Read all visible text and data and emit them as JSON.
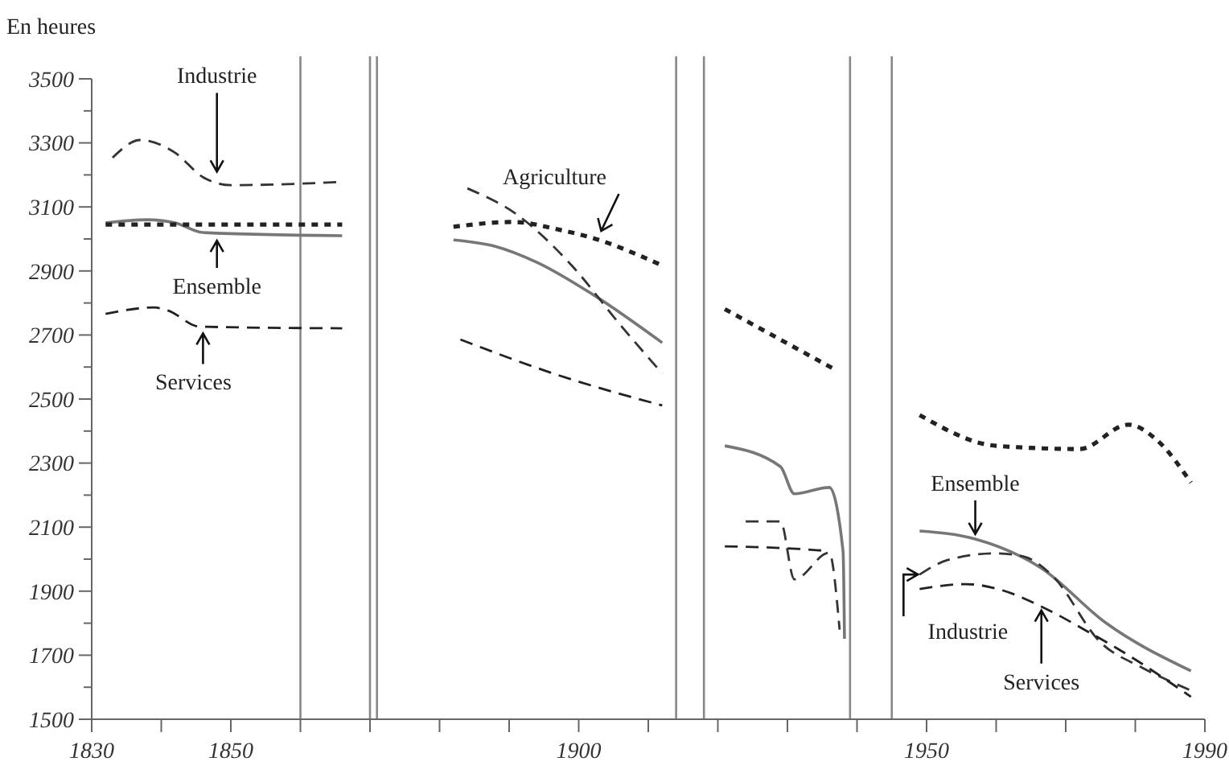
{
  "chart_data": {
    "type": "line",
    "ylabel": "En heures",
    "xlim": [
      1830,
      1990
    ],
    "xticks": [
      1830,
      {
        "value": 1840,
        "label": null
      },
      1850,
      {
        "value": 1860,
        "label": null
      },
      {
        "value": 1870,
        "label": null
      },
      {
        "value": 1880,
        "label": null
      },
      {
        "value": 1890,
        "label": null
      },
      1900,
      {
        "value": 1910,
        "label": null
      },
      {
        "value": 1920,
        "label": null
      },
      {
        "value": 1930,
        "label": null
      },
      {
        "value": 1940,
        "label": null
      },
      1950,
      {
        "value": 1960,
        "label": null
      },
      {
        "value": 1970,
        "label": null
      },
      {
        "value": 1980,
        "label": null
      },
      1990
    ],
    "ylim": [
      1500,
      3500
    ],
    "yticks": [
      1500,
      {
        "value": 1600,
        "label": null
      },
      1700,
      {
        "value": 1800,
        "label": null
      },
      1900,
      {
        "value": 2000,
        "label": null
      },
      2100,
      {
        "value": 2200,
        "label": null
      },
      2300,
      {
        "value": 2400,
        "label": null
      },
      2500,
      {
        "value": 2600,
        "label": null
      },
      2700,
      {
        "value": 2800,
        "label": null
      },
      2900,
      {
        "value": 3000,
        "label": null
      },
      3100,
      {
        "value": 3200,
        "label": null
      },
      3300,
      {
        "value": 3400,
        "label": null
      },
      3500
    ],
    "grid": false,
    "series": [
      {
        "color": "#777777",
        "line_style": "solid",
        "x": [
          1832,
          1838,
          1842,
          1846,
          1866,
          1874,
          1882,
          1888,
          1894,
          1902,
          1912,
          1916,
          1921,
          1929,
          1931,
          1936,
          1938,
          1938.2,
          1942,
          1949,
          1957,
          1966.5,
          1975.7,
          1988
        ],
        "values": [
          3050,
          3060,
          3050,
          3020,
          3010,
          null,
          2997,
          2977,
          2927,
          2827,
          2676,
          null,
          2354,
          2289,
          2204,
          2224,
          2023,
          1751,
          null,
          2088,
          2063,
          1972,
          1802,
          1651
        ]
      },
      {
        "color": "#333333",
        "line_style": "dashed",
        "x": [
          1833,
          1837,
          1842,
          1846,
          1850,
          1866,
          1874,
          1884,
          1891,
          1899,
          1906,
          1912,
          1916,
          1924,
          1929,
          1931,
          1936,
          1937.5,
          1942,
          1949,
          1953,
          1960,
          1964,
          1968,
          1975,
          1981,
          1988
        ],
        "values": [
          3254,
          3309,
          3269,
          3193,
          3168,
          3178,
          null,
          3158,
          3078,
          2917,
          2731,
          2580,
          null,
          2118,
          2118,
          1937,
          2020,
          1780,
          null,
          1952,
          1997,
          2018,
          2008,
          1950,
          1740,
          1661,
          1590
        ]
      },
      {
        "color": "#222222",
        "line_style": "dotted",
        "x": [
          1832,
          1866,
          1874,
          1882,
          1890.5,
          1897.4,
          1902,
          1912,
          1916,
          1921,
          1937,
          1942,
          1949,
          1960,
          1972,
          1979,
          1983,
          1988
        ],
        "values": [
          3045,
          3045,
          null,
          3038,
          3053,
          3028,
          3003,
          2917,
          null,
          2781,
          2590,
          null,
          2450,
          2354,
          2344,
          2420,
          2374,
          2239
        ]
      },
      {
        "color": "#222222",
        "line_style": "dashed",
        "x": [
          1832,
          1839,
          1841,
          1845.5,
          1866,
          1874,
          1883,
          1897,
          1912,
          1916,
          1921,
          1933,
          1936,
          1942,
          1949,
          1955.7,
          1961,
          1966.5,
          1973.4,
          1979,
          1988
        ],
        "values": [
          2766,
          2786,
          2776,
          2726,
          2721,
          null,
          2686,
          2575,
          2480,
          null,
          2040,
          2030,
          2025,
          null,
          1907,
          1922,
          1902,
          1852,
          1771,
          1700,
          1570
        ]
      }
    ],
    "ref_lines": [
      {
        "axis": "x",
        "value": 1860,
        "color": "#888888"
      },
      {
        "axis": "x",
        "value": 1870,
        "color": "#888888"
      },
      {
        "axis": "x",
        "value": 1871,
        "color": "#888888"
      },
      {
        "axis": "x",
        "value": 1914,
        "color": "#888888"
      },
      {
        "axis": "x",
        "value": 1918,
        "color": "#888888"
      },
      {
        "axis": "x",
        "value": 1939,
        "color": "#888888"
      },
      {
        "axis": "x",
        "value": 1945,
        "color": "#888888"
      }
    ],
    "annotations": [
      {
        "text": "Industrie",
        "x": 1848,
        "y": 3195
      },
      {
        "text": "Ensemble",
        "x": 1848,
        "y": 3010
      },
      {
        "text": "Services",
        "x": 1846,
        "y": 2720
      },
      {
        "text": "Agriculture",
        "x": 1903,
        "y": 3010
      },
      {
        "text": "Ensemble",
        "x": 1957,
        "y": 2063
      },
      {
        "text": "Industrie",
        "x": 1949,
        "y": 1952
      },
      {
        "text": "Services",
        "x": 1966.5,
        "y": 1855
      }
    ]
  }
}
